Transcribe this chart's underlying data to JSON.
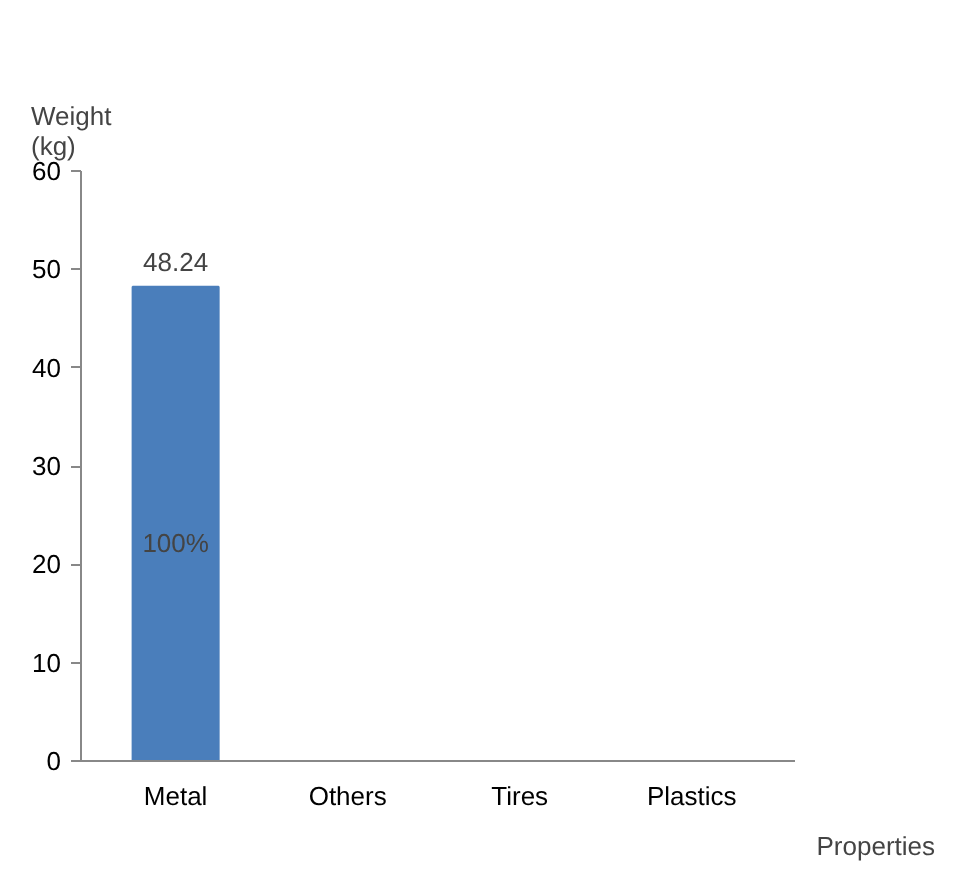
{
  "chart_data": {
    "type": "bar",
    "xlabel": "Properties",
    "ylabel": "Weight\n(kg)",
    "categories": [
      "Metal",
      "Others",
      "Tires",
      "Plastics"
    ],
    "values": [
      48.24,
      0,
      0,
      0
    ],
    "color": "#4a7ebb",
    "value_labels": [
      "48.24",
      null,
      null,
      null
    ],
    "annotations": [
      "100%"
    ],
    "ylim": [
      0,
      60
    ],
    "yticks": [
      0,
      10,
      20,
      30,
      40,
      50,
      60
    ],
    "grid": false
  }
}
